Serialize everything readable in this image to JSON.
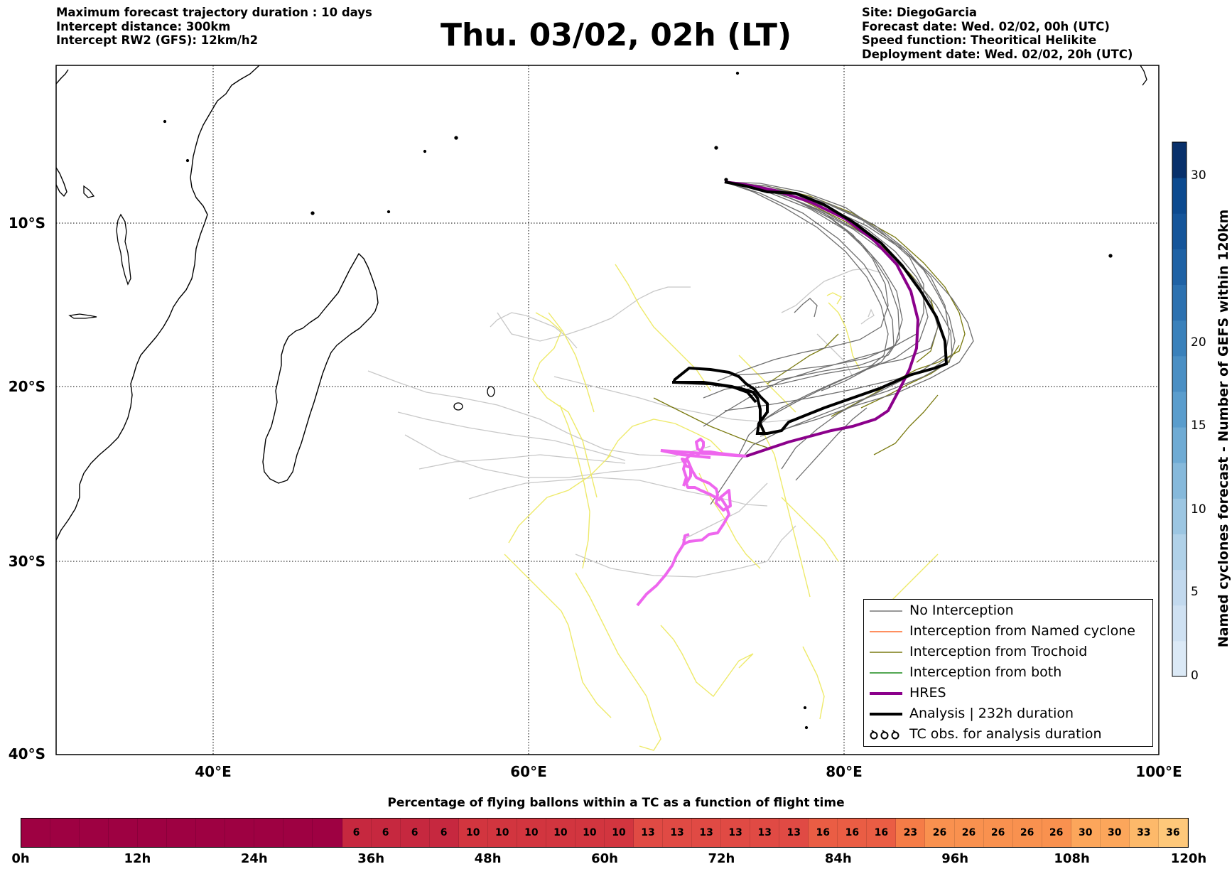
{
  "header_left": [
    "Maximum forecast trajectory duration : 10 days",
    "Intercept distance: 300km",
    "Intercept RW2 (GFS):  12km/h2"
  ],
  "title": "Thu. 03/02, 02h (LT)",
  "header_right": [
    "Site: DiegoGarcia",
    "Forecast date: Wed. 02/02, 00h (UTC)",
    "Speed function: Theoritical Helikite",
    "Deployment date: Wed. 02/02, 20h (UTC)"
  ],
  "map": {
    "lat_labels": [
      "10°S",
      "20°S",
      "30°S",
      "40°S"
    ],
    "lon_labels": [
      "40°E",
      "60°E",
      "80°E",
      "100°E"
    ],
    "lon_range": [
      30,
      100
    ],
    "lat_range": [
      -40,
      -0.5
    ],
    "grid": "dotted"
  },
  "legend": {
    "items": [
      {
        "label": "No Interception",
        "color": "#777777",
        "style": "line-thin"
      },
      {
        "label": "Interception from Named cyclone",
        "color": "#ff6a2a",
        "style": "line-thin"
      },
      {
        "label": "Interception from Trochoid",
        "color": "#7a7a10",
        "style": "line-thin"
      },
      {
        "label": "Interception from both",
        "color": "#1a8a1a",
        "style": "line-thin"
      },
      {
        "label": "HRES",
        "color": "#8b008b",
        "style": "line-thick"
      },
      {
        "label": "Analysis | 232h duration",
        "color": "#000000",
        "style": "line-thick"
      },
      {
        "label": "TC obs. for analysis duration",
        "color": "#000000",
        "style": "cyclone-symbols"
      }
    ]
  },
  "colorbar": {
    "label": "Named cyclones forecast - Number of GEFS within 120km",
    "ticks": [
      "0",
      "5",
      "10",
      "15",
      "20",
      "30"
    ],
    "colors": [
      "#dbe9f6",
      "#cfe1f2",
      "#c2d9ee",
      "#b0d1e8",
      "#9cc6e2",
      "#86b9db",
      "#6fabd4",
      "#5a9dcd",
      "#4a8fc4",
      "#3a81bb",
      "#2c71b0",
      "#1f62a5",
      "#15559a",
      "#0c4a8f",
      "#08306b"
    ]
  },
  "flight_bar": {
    "title": "Percentage of flying ballons within a TC as a function of flight time",
    "time_labels": [
      "0h",
      "12h",
      "24h",
      "36h",
      "48h",
      "60h",
      "72h",
      "84h",
      "96h",
      "108h",
      "120h"
    ],
    "values": [
      null,
      null,
      null,
      null,
      null,
      null,
      null,
      null,
      null,
      null,
      null,
      6,
      6,
      6,
      6,
      10,
      10,
      10,
      10,
      10,
      10,
      13,
      13,
      13,
      13,
      13,
      13,
      16,
      16,
      16,
      23,
      26,
      26,
      26,
      26,
      26,
      30,
      30,
      33,
      36
    ],
    "empty_color": "#9e0142"
  }
}
